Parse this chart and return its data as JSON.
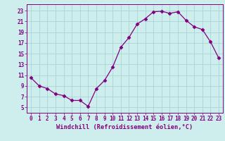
{
  "x": [
    0,
    1,
    2,
    3,
    4,
    5,
    6,
    7,
    8,
    9,
    10,
    11,
    12,
    13,
    14,
    15,
    16,
    17,
    18,
    19,
    20,
    21,
    22,
    23
  ],
  "y": [
    10.5,
    9.0,
    8.5,
    7.5,
    7.2,
    6.3,
    6.3,
    5.2,
    8.5,
    10.0,
    12.5,
    16.2,
    18.0,
    20.5,
    21.5,
    22.8,
    22.9,
    22.5,
    22.8,
    21.2,
    20.0,
    19.5,
    17.2,
    14.2
  ],
  "line_color": "#800080",
  "marker": "D",
  "marker_size": 2.5,
  "bg_color": "#ceeeed",
  "grid_color": "#aad4d4",
  "xlabel": "Windchill (Refroidissement éolien,°C)",
  "ylabel_ticks": [
    5,
    7,
    9,
    11,
    13,
    15,
    17,
    19,
    21,
    23
  ],
  "ylim": [
    4.0,
    24.2
  ],
  "xlim": [
    -0.5,
    23.5
  ],
  "xticks": [
    0,
    1,
    2,
    3,
    4,
    5,
    6,
    7,
    8,
    9,
    10,
    11,
    12,
    13,
    14,
    15,
    16,
    17,
    18,
    19,
    20,
    21,
    22,
    23
  ],
  "tick_color": "#800080",
  "label_color": "#800080",
  "tick_fontsize": 5.5,
  "xlabel_fontsize": 6.2
}
